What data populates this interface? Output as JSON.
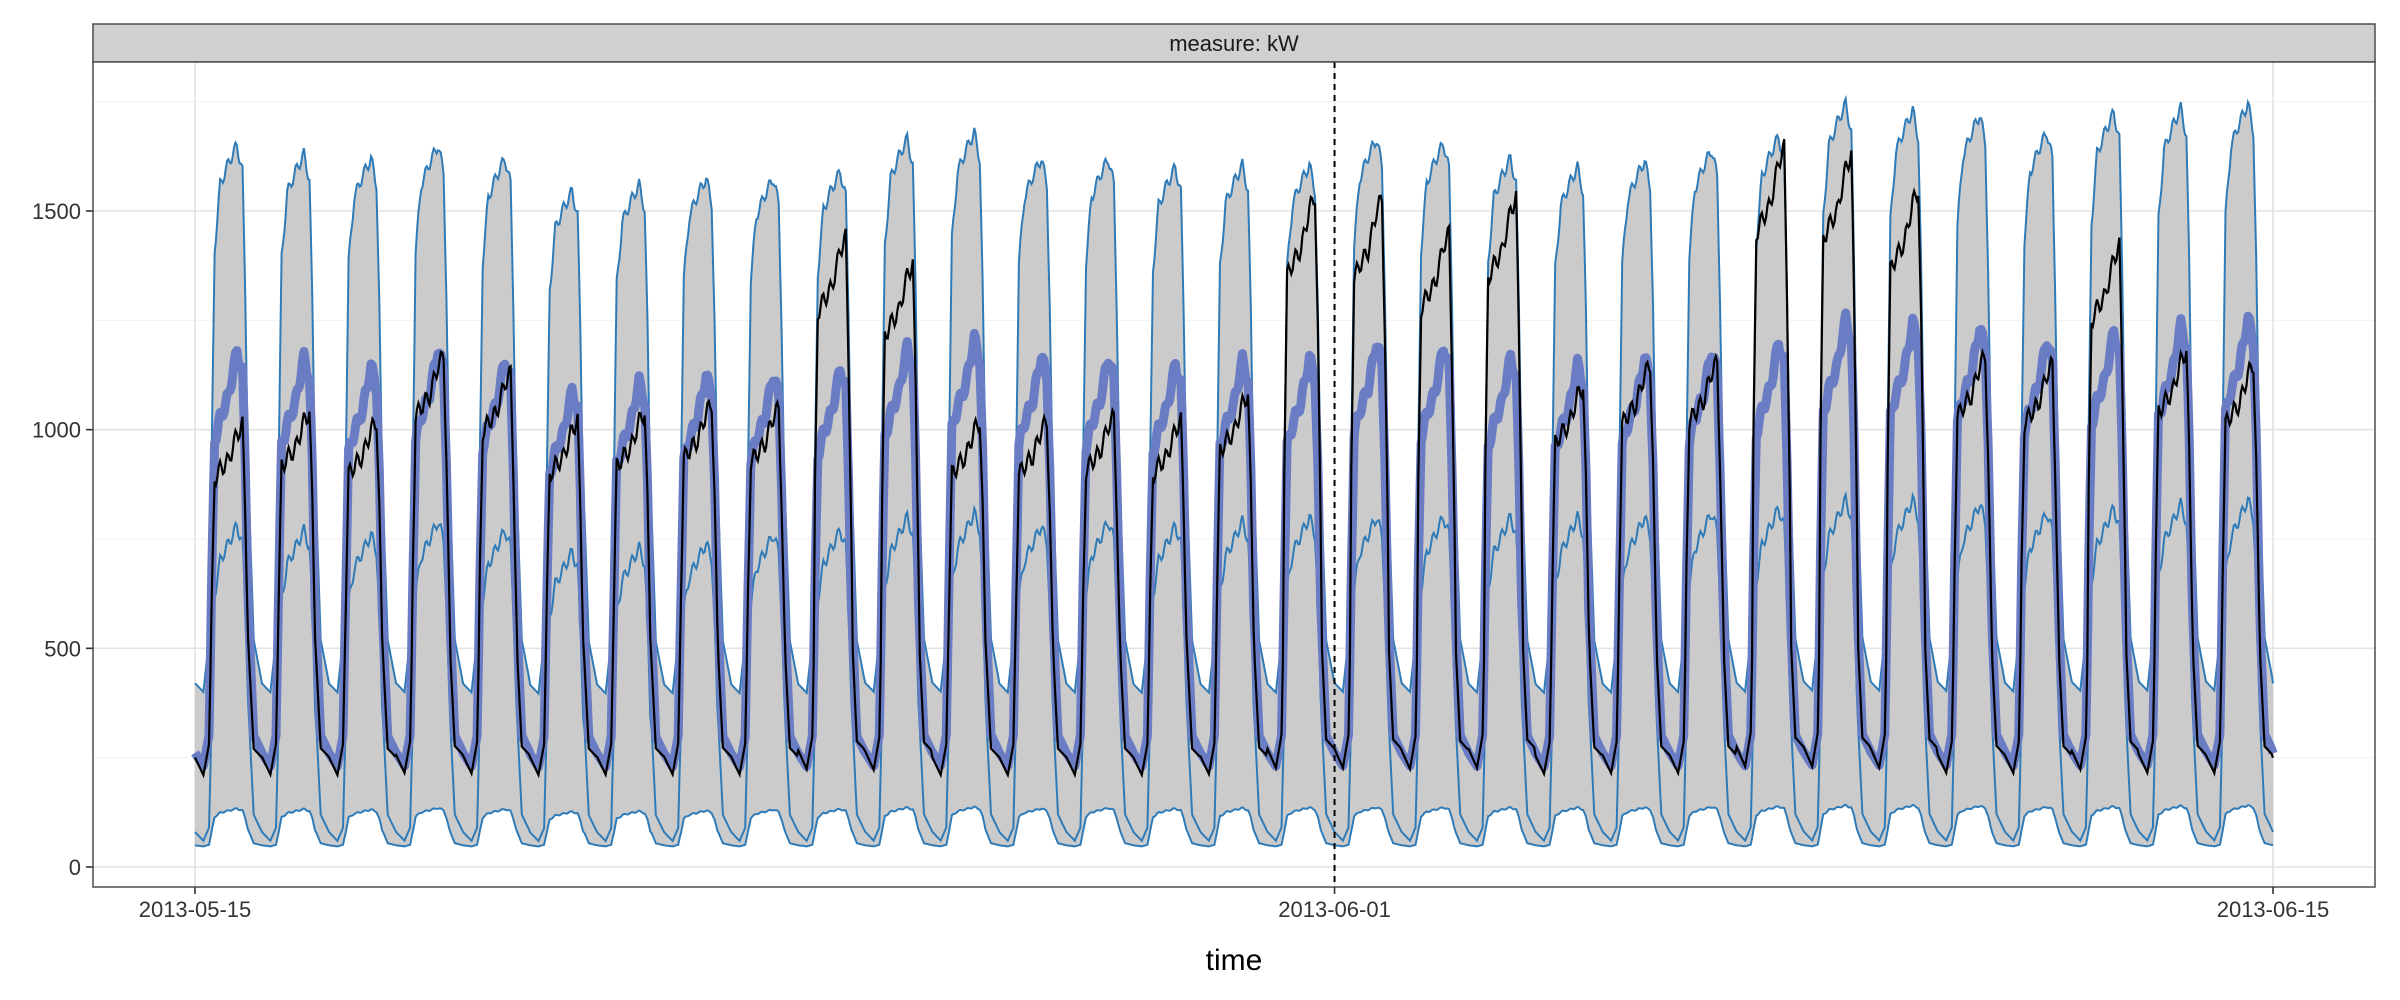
{
  "chart_data": {
    "type": "line",
    "facet_label": "measure: kW",
    "xlabel": "time",
    "ylabel": "",
    "x_range": [
      "2013-05-15T00:00",
      "2013-06-15T00:00"
    ],
    "ylim": [
      0,
      1800
    ],
    "y_ticks": [
      0,
      500,
      1000,
      1500
    ],
    "x_ticks": [
      "2013-05-15",
      "2013-06-01",
      "2013-06-15"
    ],
    "forecast_start": "2013-06-01",
    "grid": true,
    "colors": {
      "interval_fill": "#cbcbcb",
      "interval_line": "#2f7bb8",
      "mean_line": "#6a7cc4",
      "actual_line": "#000000",
      "strip_fill": "#d0d0d0",
      "grid": "#ebebeb"
    },
    "daily_profile": {
      "hours": [
        0,
        3,
        5,
        6,
        7,
        9,
        12,
        15,
        17,
        18,
        19,
        21
      ],
      "upper": [
        420,
        400,
        520,
        950,
        1400,
        1550,
        1600,
        1640,
        1580,
        1300,
        900,
        520
      ],
      "lower": [
        80,
        60,
        90,
        350,
        620,
        700,
        740,
        780,
        740,
        600,
        380,
        120
      ],
      "mean": [
        260,
        230,
        300,
        650,
        950,
        1000,
        1050,
        1150,
        1100,
        900,
        600,
        300
      ],
      "actual": [
        250,
        210,
        280,
        600,
        880,
        900,
        920,
        980,
        1000,
        800,
        520,
        270
      ]
    },
    "series": [
      {
        "role": "interval_upper",
        "daily_peak": [
          1650,
          1630,
          1620,
          1650,
          1620,
          1545,
          1560,
          1575,
          1575,
          1590,
          1665,
          1680,
          1620,
          1620,
          1600,
          1605,
          1605,
          1665,
          1655,
          1620,
          1600,
          1615,
          1640,
          1670,
          1745,
          1730,
          1720,
          1680,
          1725,
          1735,
          1745
        ]
      },
      {
        "role": "interval_lower",
        "daily_peak": [
          780,
          770,
          760,
          790,
          770,
          720,
          730,
          740,
          760,
          770,
          800,
          810,
          780,
          790,
          780,
          790,
          800,
          800,
          800,
          800,
          800,
          800,
          810,
          820,
          840,
          840,
          830,
          810,
          820,
          830,
          840
        ]
      },
      {
        "role": "mean",
        "daily_peak": [
          1180,
          1165,
          1145,
          1185,
          1160,
          1090,
          1110,
          1125,
          1125,
          1140,
          1190,
          1210,
          1170,
          1165,
          1150,
          1160,
          1165,
          1200,
          1190,
          1165,
          1150,
          1165,
          1180,
          1200,
          1255,
          1245,
          1235,
          1205,
          1225,
          1240,
          1255
        ]
      },
      {
        "role": "actual",
        "daily_peak": [
          1010,
          1040,
          1020,
          1170,
          1130,
          1020,
          1040,
          1060,
          1050,
          1440,
          1380,
          1020,
          1020,
          1030,
          1020,
          1080,
          1535,
          1530,
          1450,
          1530,
          1100,
          1150,
          1155,
          1645,
          1630,
          1550,
          1170,
          1150,
          1420,
          1180,
          1150
        ]
      }
    ]
  }
}
